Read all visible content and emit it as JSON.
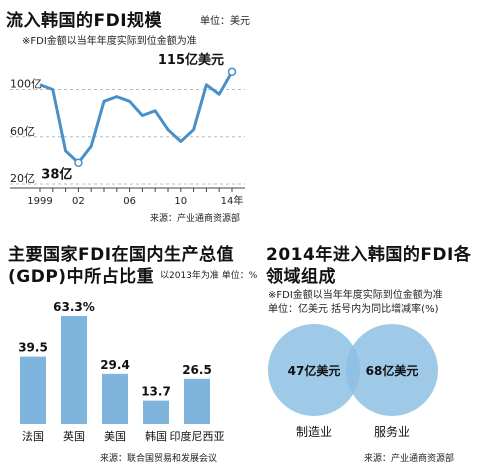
{
  "chart_data": [
    {
      "type": "line",
      "title": "流入韩国的FDI规模",
      "unit": "单位：美元",
      "subtitle": "※FDI金额以当年年度实际到位金额为准",
      "source": "来源：产业通商资源部",
      "x": [
        1999,
        2000,
        2001,
        2002,
        2003,
        2004,
        2005,
        2006,
        2007,
        2008,
        2009,
        2010,
        2011,
        2012,
        2013,
        2014
      ],
      "values": [
        104,
        100,
        48,
        38,
        52,
        90,
        94,
        90,
        78,
        82,
        66,
        56,
        66,
        104,
        96,
        115
      ],
      "x_tick_labels": [
        "1999",
        "02",
        "06",
        "10",
        "14年"
      ],
      "x_tick_years": [
        1999,
        2002,
        2006,
        2010,
        2014
      ],
      "y_tick_labels": [
        "100亿",
        "60亿",
        "20亿"
      ],
      "y_tick_values": [
        100,
        60,
        20
      ],
      "ylim": [
        20,
        125
      ],
      "annotations": [
        {
          "label": "115亿美元",
          "year": 2014
        },
        {
          "label": "38亿",
          "year": 2002
        }
      ],
      "line_color": "#4a90c8"
    },
    {
      "type": "bar",
      "title": "主要国家FDI在国内生产总值(GDP)中所占比重",
      "unit": "以2013年为准 单位：%",
      "source": "来源：联合国贸易和发展会议",
      "categories": [
        "法国",
        "英国",
        "美国",
        "韩国",
        "印度尼西亚"
      ],
      "values": [
        39.5,
        63.3,
        29.4,
        13.7,
        26.5
      ],
      "value_labels": [
        "39.5",
        "63.3%",
        "29.4",
        "13.7",
        "26.5"
      ],
      "bar_color": "#7fb4dc"
    },
    {
      "type": "venn",
      "title": "2014年进入韩国的FDI各领域组成",
      "note": "※FDI金额以当年年度实际到位金额为准",
      "unit": "单位：亿美元 括号内为同比增减率(%)",
      "source": "来源：产业通商资源部",
      "sectors": [
        {
          "name": "制造业",
          "value_label": "47亿美元",
          "value": 47
        },
        {
          "name": "服务业",
          "value_label": "68亿美元",
          "value": 68
        }
      ],
      "circle_color": "#8dbfe3"
    }
  ],
  "titles": {
    "line1": "主要国家FDI在国内生产总值",
    "line2": "(GDP)中所占比重",
    "venn_line1": "2014年进入韩国的FDI各",
    "venn_line2": "领域组成"
  }
}
